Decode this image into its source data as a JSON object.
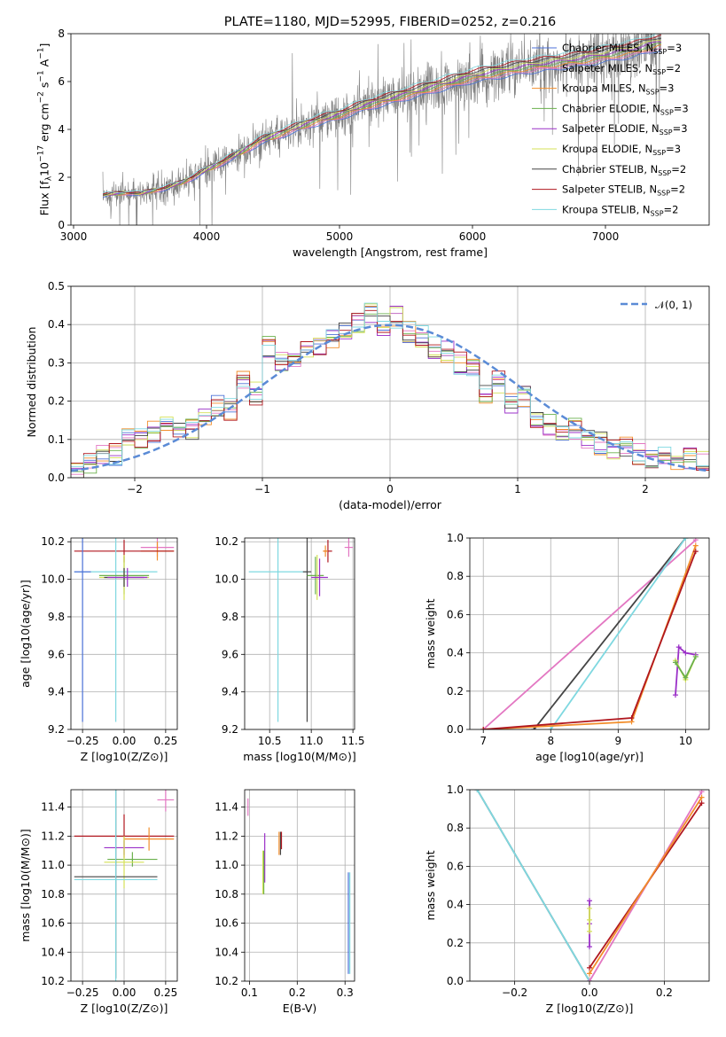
{
  "title": "PLATE=1180, MJD=52995, FIBERID=0252, z=0.216",
  "colors": {
    "chabrier_miles": "#4c72d8",
    "salpeter_miles": "#e377c2",
    "kroupa_miles": "#f28e2b",
    "chabrier_elodie": "#6ab04c",
    "salpeter_elodie": "#9b30c8",
    "kroupa_elodie": "#d4e157",
    "chabrier_stelib": "#444444",
    "salpeter_stelib": "#b0171f",
    "kroupa_stelib": "#7fd8e0",
    "data": "#7f7f7f",
    "gauss": "#5b8bd6"
  },
  "chart_data": [
    {
      "type": "line",
      "panel": "spectrum",
      "title": "PLATE=1180, MJD=52995, FIBERID=0252, z=0.216",
      "xlabel": "wavelength [Angstrom, rest frame]",
      "ylabel": "Flux [f_λ 10^-17 erg cm^-2 s^-1 A^-1]",
      "xlim": [
        2980,
        7780
      ],
      "ylim": [
        0,
        8
      ],
      "xticks": [
        "3000",
        "4000",
        "5000",
        "6000",
        "7000"
      ],
      "yticks": [
        "0",
        "2",
        "4",
        "6",
        "8"
      ],
      "grid": false,
      "legend": "top-right",
      "spectrum_x": [
        3220,
        3300,
        3400,
        3500,
        3600,
        3700,
        3800,
        3900,
        4000,
        4200,
        4400,
        4600,
        4800,
        5000,
        5200,
        5400,
        5600,
        5800,
        6000,
        6200,
        6400,
        6600,
        6800,
        7000,
        7200,
        7400
      ],
      "spectrum_y": [
        1.25,
        1.3,
        1.35,
        1.3,
        1.45,
        1.55,
        1.75,
        2.0,
        2.3,
        2.85,
        3.5,
        3.9,
        4.3,
        4.6,
        5.0,
        5.3,
        5.6,
        5.9,
        6.2,
        6.4,
        6.6,
        6.75,
        6.9,
        7.1,
        7.3,
        7.6
      ],
      "series": [
        {
          "name": "Chabrier MILES, N_SSP=3"
        },
        {
          "name": "Salpeter MILES, N_SSP=2"
        },
        {
          "name": "Kroupa MILES, N_SSP=3"
        },
        {
          "name": "Chabrier ELODIE, N_SSP=3"
        },
        {
          "name": "Salpeter ELODIE, N_SSP=3"
        },
        {
          "name": "Kroupa ELODIE, N_SSP=3"
        },
        {
          "name": "Chabrier STELIB, N_SSP=2"
        },
        {
          "name": "Salpeter STELIB, N_SSP=2"
        },
        {
          "name": "Kroupa STELIB, N_SSP=2"
        }
      ]
    },
    {
      "type": "line",
      "panel": "residuals",
      "xlabel": "(data-model)/error",
      "ylabel": "Normed distribution",
      "xlim": [
        -2.5,
        2.5
      ],
      "ylim": [
        0,
        0.5
      ],
      "xticks": [
        "−2",
        "−1",
        "0",
        "1",
        "2"
      ],
      "yticks": [
        "0.0",
        "0.1",
        "0.2",
        "0.3",
        "0.4",
        "0.5"
      ],
      "grid": true,
      "legend": "top-right",
      "gauss_label": "𝒩(0, 1)",
      "hist_values": [
        0.02,
        0.04,
        0.06,
        0.06,
        0.11,
        0.1,
        0.12,
        0.14,
        0.12,
        0.13,
        0.15,
        0.19,
        0.18,
        0.25,
        0.22,
        0.34,
        0.3,
        0.31,
        0.33,
        0.34,
        0.36,
        0.38,
        0.4,
        0.43,
        0.4,
        0.42,
        0.38,
        0.37,
        0.34,
        0.33,
        0.3,
        0.28,
        0.22,
        0.25,
        0.19,
        0.21,
        0.16,
        0.14,
        0.12,
        0.13,
        0.1,
        0.09,
        0.07,
        0.08,
        0.06,
        0.05,
        0.06,
        0.04,
        0.05,
        0.04
      ]
    },
    {
      "type": "scatter",
      "panel": "age_vs_Z",
      "xlabel": "Z [log10(Z/Z⊙)]",
      "ylabel": "age [log10(age/yr)]",
      "xlim": [
        -0.32,
        0.32
      ],
      "ylim": [
        9.2,
        10.22
      ],
      "xticks": [
        "−0.25",
        "0.00",
        "0.25"
      ],
      "yticks": [
        "9.2",
        "9.4",
        "9.6",
        "9.8",
        "10.0",
        "10.2"
      ],
      "points": [
        {
          "s": "salpeter_miles",
          "x": 0.2,
          "y": 10.17,
          "xe": 0.1,
          "ye": 0.05
        },
        {
          "s": "kroupa_miles",
          "x": 0.2,
          "y": 10.15,
          "xe": 0.1,
          "ye": 0.05
        },
        {
          "s": "salpeter_stelib",
          "x": 0.0,
          "y": 10.15,
          "xe": 0.3,
          "ye": 0.06
        },
        {
          "s": "kroupa_stelib",
          "x": -0.05,
          "y": 10.04,
          "xe": 0.25,
          "ye": 0.8
        },
        {
          "s": "chabrier_elodie",
          "x": 0.0,
          "y": 10.02,
          "xe": 0.15,
          "ye": 0.1
        },
        {
          "s": "kroupa_elodie",
          "x": 0.0,
          "y": 10.01,
          "xe": 0.15,
          "ye": 0.12
        },
        {
          "s": "chabrier_stelib",
          "x": 0.0,
          "y": 10.01,
          "xe": 0.12,
          "ye": 0.05
        },
        {
          "s": "salpeter_elodie",
          "x": 0.02,
          "y": 10.01,
          "xe": 0.12,
          "ye": 0.05
        },
        {
          "s": "chabrier_miles",
          "x": -0.25,
          "y": 10.04,
          "xe": 0.05,
          "ye": 0.8
        }
      ]
    },
    {
      "type": "scatter",
      "panel": "age_vs_mass",
      "xlabel": "mass [log10(M/M⊙)]",
      "ylabel": "",
      "xlim": [
        10.2,
        11.52
      ],
      "ylim": [
        9.2,
        10.22
      ],
      "xticks": [
        "10.5",
        "11.0",
        "11.5"
      ],
      "yticks": [
        "9.2",
        "9.4",
        "9.6",
        "9.8",
        "10.0",
        "10.2"
      ],
      "points": [
        {
          "s": "kroupa_stelib",
          "x": 10.6,
          "y": 10.04,
          "xe": 0.35,
          "ye": 0.8
        },
        {
          "s": "chabrier_stelib",
          "x": 10.95,
          "y": 10.04,
          "xe": 0.05,
          "ye": 0.8
        },
        {
          "s": "chabrier_elodie",
          "x": 11.05,
          "y": 10.02,
          "xe": 0.1,
          "ye": 0.1
        },
        {
          "s": "kroupa_elodie",
          "x": 11.07,
          "y": 10.01,
          "xe": 0.05,
          "ye": 0.12
        },
        {
          "s": "salpeter_elodie",
          "x": 11.1,
          "y": 10.01,
          "xe": 0.1,
          "ye": 0.1
        },
        {
          "s": "salpeter_stelib",
          "x": 11.2,
          "y": 10.15,
          "xe": 0.05,
          "ye": 0.06
        },
        {
          "s": "kroupa_miles",
          "x": 11.17,
          "y": 10.15,
          "xe": 0.03,
          "ye": 0.03
        },
        {
          "s": "salpeter_miles",
          "x": 11.45,
          "y": 10.17,
          "xe": 0.05,
          "ye": 0.05
        }
      ]
    },
    {
      "type": "line",
      "panel": "weight_vs_age",
      "xlabel": "age [log10(age/yr)]",
      "ylabel": "mass weight",
      "xlim": [
        6.8,
        10.35
      ],
      "ylim": [
        0,
        1
      ],
      "xticks": [
        "7",
        "8",
        "9",
        "10"
      ],
      "yticks": [
        "0.0",
        "0.2",
        "0.4",
        "0.6",
        "0.8",
        "1.0"
      ],
      "lines": [
        {
          "s": "salpeter_miles",
          "x": [
            7.0,
            10.15
          ],
          "y": [
            0.0,
            0.99
          ]
        },
        {
          "s": "chabrier_stelib",
          "x": [
            7.75,
            10.0
          ],
          "y": [
            0.0,
            1.0
          ]
        },
        {
          "s": "kroupa_stelib",
          "x": [
            8.0,
            10.0
          ],
          "y": [
            0.0,
            1.0
          ]
        },
        {
          "s": "kroupa_miles",
          "x": [
            7.0,
            9.2,
            10.15
          ],
          "y": [
            0.0,
            0.04,
            0.96
          ]
        },
        {
          "s": "salpeter_stelib",
          "x": [
            7.0,
            9.2,
            10.15
          ],
          "y": [
            0.0,
            0.06,
            0.93
          ]
        },
        {
          "s": "salpeter_elodie",
          "x": [
            9.85,
            9.9,
            10.0,
            10.15
          ],
          "y": [
            0.18,
            0.43,
            0.4,
            0.39
          ]
        },
        {
          "s": "kroupa_elodie",
          "x": [
            9.85,
            10.0,
            10.15
          ],
          "y": [
            0.36,
            0.26,
            0.38
          ]
        },
        {
          "s": "chabrier_elodie",
          "x": [
            9.85,
            10.0,
            10.15
          ],
          "y": [
            0.35,
            0.27,
            0.38
          ]
        }
      ]
    },
    {
      "type": "scatter",
      "panel": "mass_vs_Z",
      "xlabel": "Z [log10(Z/Z⊙)]",
      "ylabel": "mass [log10(M/M⊙)]",
      "xlim": [
        -0.32,
        0.32
      ],
      "ylim": [
        10.2,
        11.52
      ],
      "xticks": [
        "−0.25",
        "0.00",
        "0.25"
      ],
      "yticks": [
        "10.2",
        "10.4",
        "10.6",
        "10.8",
        "11.0",
        "11.2",
        "11.4"
      ],
      "points": [
        {
          "s": "salpeter_miles",
          "x": 0.25,
          "y": 11.45,
          "xe": 0.05,
          "ye": 0.08
        },
        {
          "s": "salpeter_stelib",
          "x": 0.0,
          "y": 11.2,
          "xe": 0.3,
          "ye": 0.15
        },
        {
          "s": "kroupa_miles",
          "x": 0.15,
          "y": 11.18,
          "xe": 0.15,
          "ye": 0.08
        },
        {
          "s": "salpeter_elodie",
          "x": 0.0,
          "y": 11.12,
          "xe": 0.12,
          "ye": 0.05
        },
        {
          "s": "chabrier_elodie",
          "x": 0.05,
          "y": 11.04,
          "xe": 0.15,
          "ye": 0.05
        },
        {
          "s": "kroupa_elodie",
          "x": 0.0,
          "y": 11.02,
          "xe": 0.12,
          "ye": 0.18
        },
        {
          "s": "chabrier_stelib",
          "x": -0.05,
          "y": 10.92,
          "xe": 0.25,
          "ye": 0.7
        },
        {
          "s": "kroupa_stelib",
          "x": -0.05,
          "y": 10.9,
          "xe": 0.25,
          "ye": 0.7
        }
      ]
    },
    {
      "type": "scatter",
      "panel": "mass_vs_ebv",
      "xlabel": "E(B-V)",
      "ylabel": "",
      "xlim": [
        0.09,
        0.32
      ],
      "ylim": [
        10.2,
        11.52
      ],
      "xticks": [
        "0.1",
        "0.2",
        "0.3"
      ],
      "yticks": [
        "10.2",
        "10.4",
        "10.6",
        "10.8",
        "11.0",
        "11.2",
        "11.4"
      ],
      "points": [
        {
          "s": "salpeter_miles",
          "x": 0.097,
          "y": 11.4,
          "ye": 0.06
        },
        {
          "s": "salpeter_elodie",
          "x": 0.132,
          "y": 11.05,
          "ye": 0.17
        },
        {
          "s": "chabrier_elodie",
          "x": 0.13,
          "y": 10.95,
          "ye": 0.15
        },
        {
          "s": "kroupa_elodie",
          "x": 0.128,
          "y": 10.95,
          "ye": 0.15
        },
        {
          "s": "kroupa_miles",
          "x": 0.162,
          "y": 11.15,
          "ye": 0.08
        },
        {
          "s": "chabrier_stelib",
          "x": 0.165,
          "y": 11.15,
          "ye": 0.08
        },
        {
          "s": "salpeter_stelib",
          "x": 0.167,
          "y": 11.17,
          "ye": 0.06
        },
        {
          "s": "kroupa_stelib",
          "x": 0.31,
          "y": 10.6,
          "ye": 0.35
        },
        {
          "s": "chabrier_miles",
          "x": 0.307,
          "y": 10.6,
          "ye": 0.35
        }
      ]
    },
    {
      "type": "line",
      "panel": "weight_vs_Z",
      "xlabel": "Z [log10(Z/Z⊙)]",
      "ylabel": "mass weight",
      "xlim": [
        -0.32,
        0.32
      ],
      "ylim": [
        0,
        1
      ],
      "xticks": [
        "−0.2",
        "0.0",
        "0.2"
      ],
      "yticks": [
        "0.0",
        "0.2",
        "0.4",
        "0.6",
        "0.8",
        "1.0"
      ],
      "lines": [
        {
          "s": "chabrier_stelib",
          "x": [
            -0.3,
            0.0
          ],
          "y": [
            1.0,
            0.0
          ]
        },
        {
          "s": "kroupa_stelib",
          "x": [
            -0.3,
            0.0
          ],
          "y": [
            1.0,
            0.0
          ]
        },
        {
          "s": "salpeter_miles",
          "x": [
            0.0,
            0.3
          ],
          "y": [
            0.0,
            0.99
          ]
        },
        {
          "s": "salpeter_stelib",
          "x": [
            0.0,
            0.3
          ],
          "y": [
            0.07,
            0.93
          ]
        },
        {
          "s": "kroupa_miles",
          "x": [
            0.0,
            0.3
          ],
          "y": [
            0.04,
            0.96
          ]
        },
        {
          "s": "salpeter_elodie",
          "x": [
            0.0,
            0.0,
            0.0
          ],
          "y": [
            0.18,
            0.3,
            0.42
          ]
        },
        {
          "s": "kroupa_elodie",
          "x": [
            0.0,
            0.0,
            0.0
          ],
          "y": [
            0.26,
            0.32,
            0.38
          ]
        }
      ]
    }
  ]
}
